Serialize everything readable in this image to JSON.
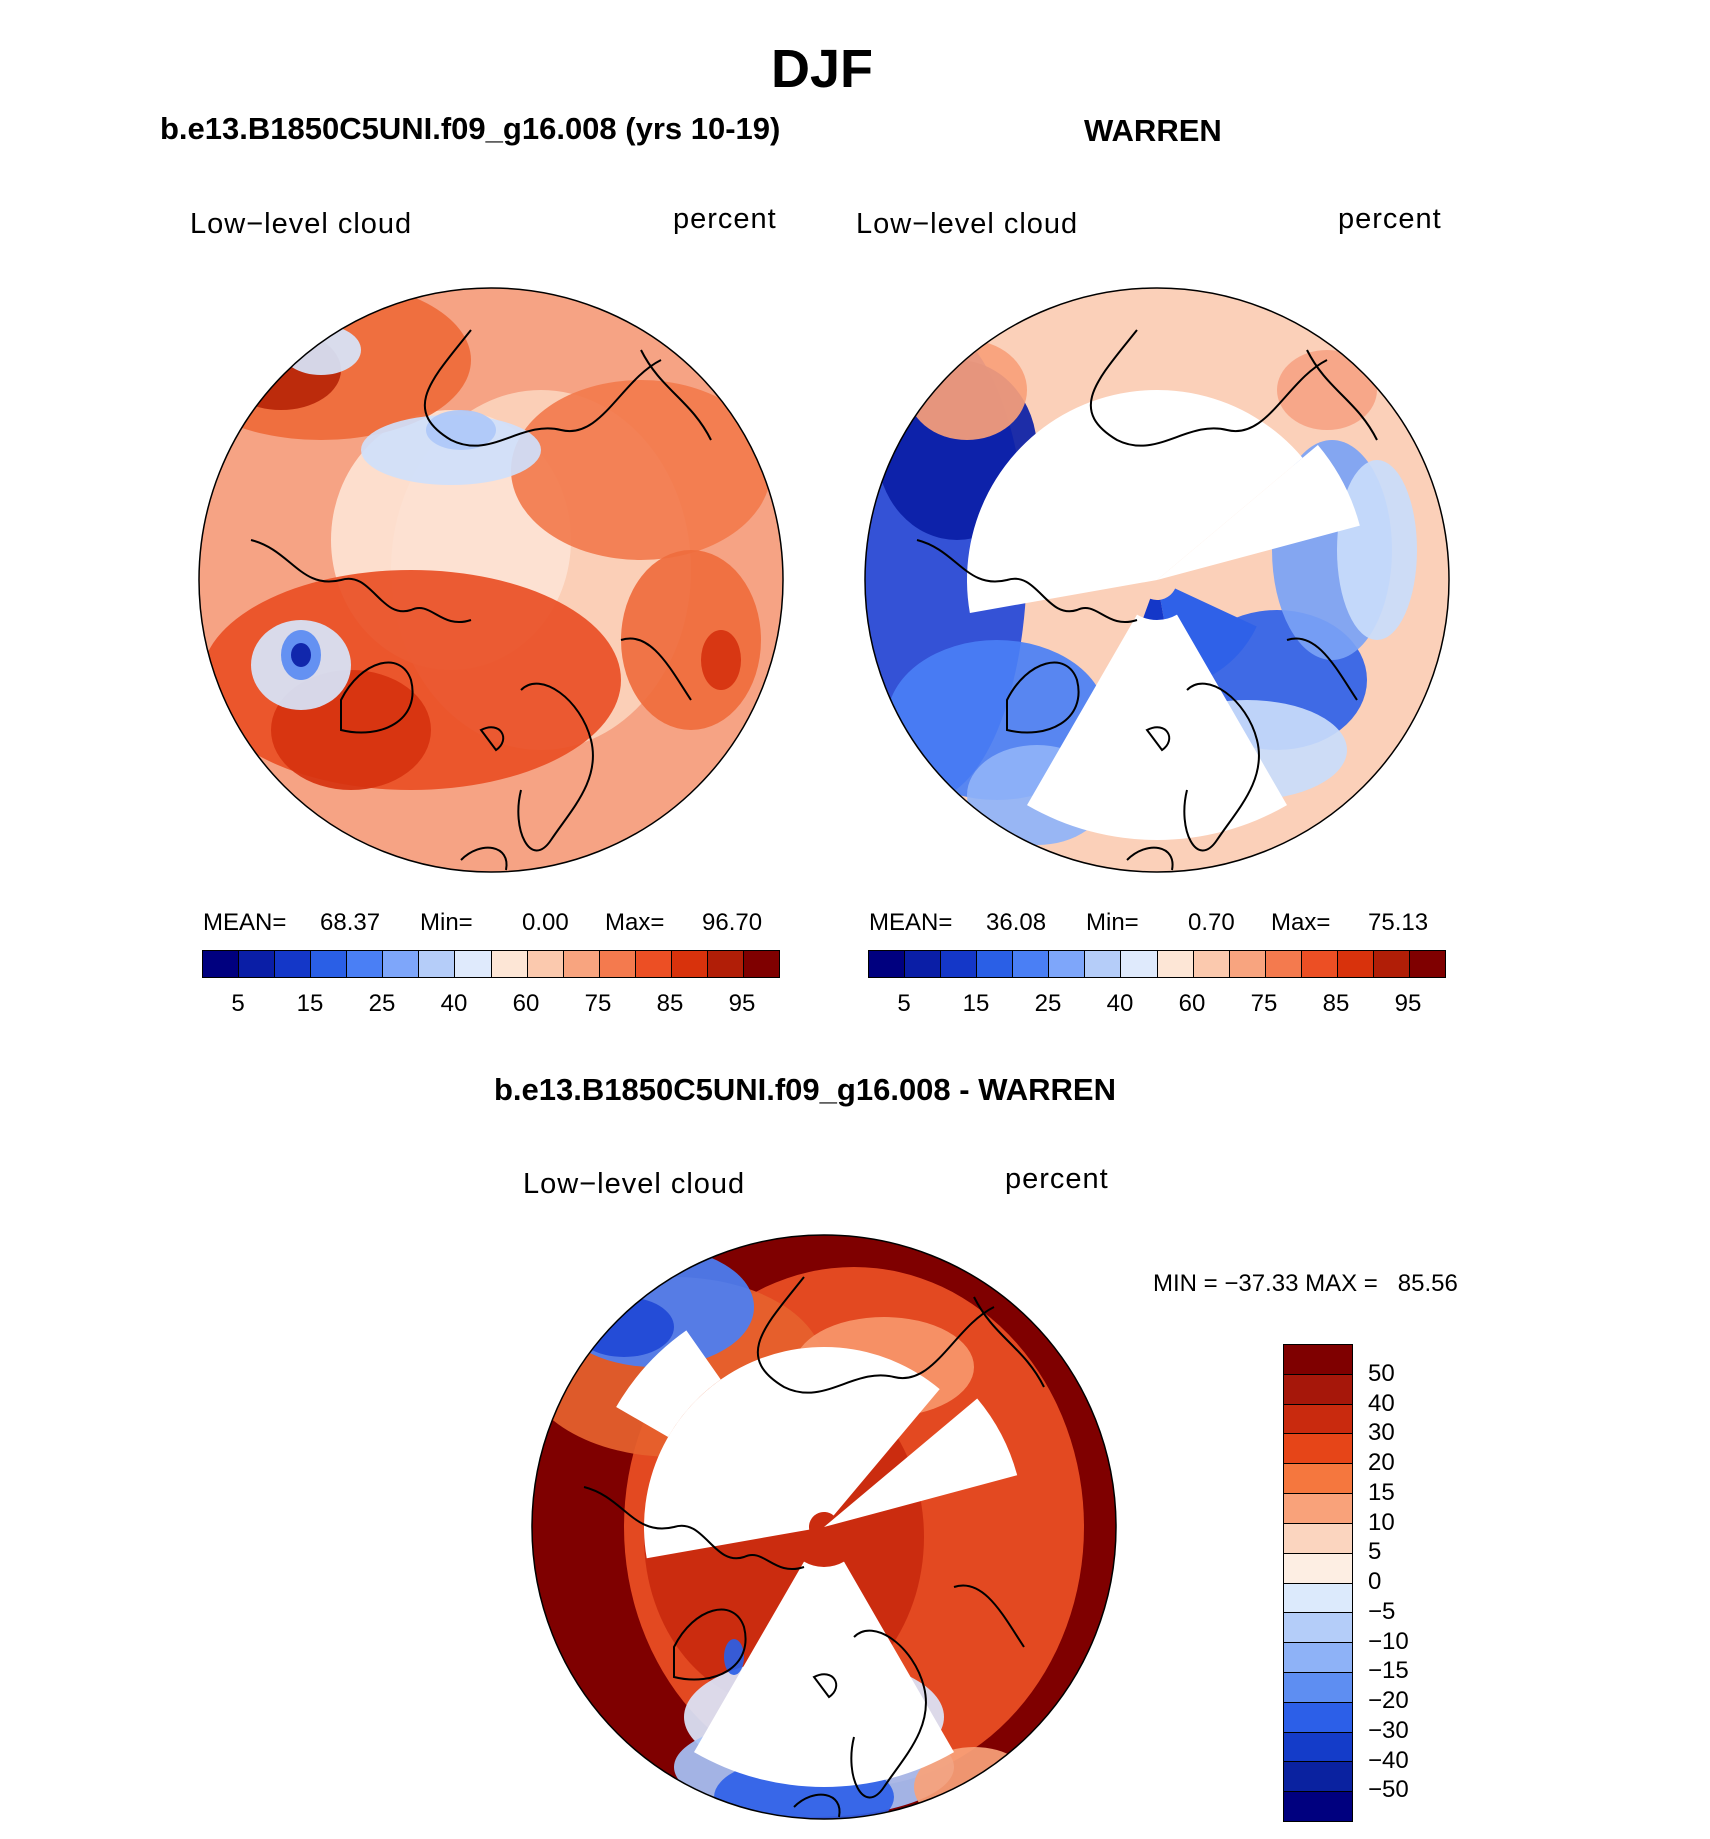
{
  "title": "DJF",
  "panels": [
    {
      "id": "model",
      "title": "b.e13.B1850C5UNI.f09_g16.008 (yrs 10-19)",
      "variable": "Low−level cloud",
      "units": "percent",
      "mean_label": "MEAN=",
      "mean": "68.37",
      "min_label": "Min=",
      "min": "0.00",
      "max_label": "Max=",
      "max": "96.70"
    },
    {
      "id": "obs",
      "title": "WARREN",
      "variable": "Low−level cloud",
      "units": "percent",
      "mean_label": "MEAN=",
      "mean": "36.08",
      "min_label": "Min=",
      "min": "0.70",
      "max_label": "Max=",
      "max": "75.13"
    }
  ],
  "abs_colorbar": {
    "colors": [
      "#00007f",
      "#0a1ea6",
      "#1437c8",
      "#2a5fe6",
      "#4a7ff5",
      "#7ea6fa",
      "#b5cdf9",
      "#dfeafc",
      "#fde6d6",
      "#fbc9ae",
      "#f8a47f",
      "#f47a4e",
      "#ec4f24",
      "#d8320c",
      "#b11e07",
      "#7f0000"
    ],
    "ticks": [
      "5",
      "15",
      "25",
      "40",
      "60",
      "75",
      "85",
      "95"
    ]
  },
  "diff_panel": {
    "title": "b.e13.B1850C5UNI.f09_g16.008 - WARREN",
    "variable": "Low−level cloud",
    "units": "percent",
    "minmax_text": "MIN = −37.33 MAX =   85.56"
  },
  "diff_colorbar": {
    "colors": [
      "#7f0000",
      "#a6170a",
      "#c92a0e",
      "#e64518",
      "#f5773e",
      "#f9a27a",
      "#fbd5bf",
      "#fdeee3",
      "#dceafc",
      "#b4cdf9",
      "#8eb2f7",
      "#5e8ef2",
      "#2c5fe8",
      "#143cc9",
      "#0a22a0",
      "#00007f"
    ],
    "ticks": [
      "50",
      "40",
      "30",
      "20",
      "15",
      "10",
      "5",
      "0",
      "−5",
      "−10",
      "−15",
      "−20",
      "−30",
      "−40",
      "−50"
    ]
  },
  "maps": [
    {
      "name": "model-map",
      "background": "#f6a384",
      "blobs": [
        {
          "c": "#fbd2bc",
          "x": 50,
          "y": -10,
          "rx": 150,
          "ry": 180
        },
        {
          "c": "#fde3d4",
          "x": -40,
          "y": -40,
          "rx": 120,
          "ry": 130
        },
        {
          "c": "#e94f25",
          "x": -80,
          "y": 100,
          "rx": 210,
          "ry": 110
        },
        {
          "c": "#d6320f",
          "x": -140,
          "y": 150,
          "rx": 80,
          "ry": 60
        },
        {
          "c": "#ee6a3a",
          "x": -170,
          "y": -220,
          "rx": 150,
          "ry": 80
        },
        {
          "c": "#b72508",
          "x": -210,
          "y": -210,
          "rx": 60,
          "ry": 40
        },
        {
          "c": "#f27b4d",
          "x": 150,
          "y": -110,
          "rx": 130,
          "ry": 90
        },
        {
          "c": "#ef6d3d",
          "x": 200,
          "y": 60,
          "rx": 70,
          "ry": 90
        },
        {
          "c": "#d6320f",
          "x": 230,
          "y": 80,
          "rx": 20,
          "ry": 30
        },
        {
          "c": "#cfe0fb",
          "x": -40,
          "y": -130,
          "rx": 90,
          "ry": 35
        },
        {
          "c": "#aec8f8",
          "x": -30,
          "y": -150,
          "rx": 35,
          "ry": 20
        },
        {
          "c": "#d7e5fb",
          "x": -190,
          "y": 85,
          "rx": 50,
          "ry": 45
        },
        {
          "c": "#5a8bf2",
          "x": -190,
          "y": 75,
          "rx": 20,
          "ry": 25
        },
        {
          "c": "#0a1ea6",
          "x": -190,
          "y": 75,
          "rx": 10,
          "ry": 12
        },
        {
          "c": "#d7e5fb",
          "x": -170,
          "y": -230,
          "rx": 40,
          "ry": 25
        }
      ]
    },
    {
      "name": "obs-map",
      "background": "#fbd0b9",
      "blobs": [
        {
          "c": "#2346d8",
          "x": -230,
          "y": -20,
          "rx": 100,
          "ry": 240
        },
        {
          "c": "#0a1ea6",
          "x": -200,
          "y": -130,
          "rx": 80,
          "ry": 90
        },
        {
          "c": "#4a7ff5",
          "x": -160,
          "y": 140,
          "rx": 110,
          "ry": 80
        },
        {
          "c": "#8fb3f8",
          "x": -120,
          "y": 215,
          "rx": 70,
          "ry": 50
        },
        {
          "c": "#2f61e8",
          "x": 120,
          "y": 100,
          "rx": 90,
          "ry": 70
        },
        {
          "c": "#7aa2f5",
          "x": 175,
          "y": -30,
          "rx": 60,
          "ry": 110
        },
        {
          "c": "#c9dcfb",
          "x": 90,
          "y": 170,
          "rx": 100,
          "ry": 50
        },
        {
          "c": "#c9dcfb",
          "x": 220,
          "y": -30,
          "rx": 40,
          "ry": 90
        },
        {
          "c": "#f8a07a",
          "x": -190,
          "y": -190,
          "rx": 60,
          "ry": 50
        },
        {
          "c": "#f6a384",
          "x": 170,
          "y": -190,
          "rx": 50,
          "ry": 40
        }
      ],
      "wedges": [
        {
          "a0": -100,
          "a1": 50,
          "r0": 0,
          "r1": 190
        },
        {
          "a0": 150,
          "a1": 210,
          "r0": 40,
          "r1": 260
        },
        {
          "a0": 50,
          "a1": 75,
          "r0": 0,
          "r1": 210
        }
      ],
      "holeRing": [
        {
          "c": "#2f61e8",
          "a0": 115,
          "a1": 170,
          "r0": 20,
          "r1": 110
        },
        {
          "c": "#1437c8",
          "a0": 170,
          "a1": 200,
          "r0": 20,
          "r1": 80
        }
      ]
    },
    {
      "name": "diff-map",
      "background": "#7f0000",
      "blobs": [
        {
          "c": "#ec4f24",
          "x": 30,
          "y": 0,
          "rx": 230,
          "ry": 260
        },
        {
          "c": "#c92a0e",
          "x": -40,
          "y": 10,
          "rx": 140,
          "ry": 170
        },
        {
          "c": "#e6622e",
          "x": -150,
          "y": -160,
          "rx": 150,
          "ry": 90
        },
        {
          "c": "#f7976b",
          "x": 60,
          "y": -160,
          "rx": 90,
          "ry": 50
        },
        {
          "c": "#4a7ff5",
          "x": -170,
          "y": -220,
          "rx": 100,
          "ry": 60
        },
        {
          "c": "#2048d6",
          "x": -200,
          "y": -200,
          "rx": 50,
          "ry": 30
        },
        {
          "c": "#dbe6fb",
          "x": -10,
          "y": 190,
          "rx": 130,
          "ry": 60
        },
        {
          "c": "#a6c2f7",
          "x": -10,
          "y": 240,
          "rx": 140,
          "ry": 50
        },
        {
          "c": "#2f61e8",
          "x": -20,
          "y": 270,
          "rx": 90,
          "ry": 40
        },
        {
          "c": "#f9a27a",
          "x": 150,
          "y": 260,
          "rx": 60,
          "ry": 40
        },
        {
          "c": "#2a5fe6",
          "x": -90,
          "y": 130,
          "rx": 10,
          "ry": 18
        }
      ],
      "wedges": [
        {
          "a0": -100,
          "a1": 40,
          "r0": 15,
          "r1": 180
        },
        {
          "a0": 150,
          "a1": 210,
          "r0": 40,
          "r1": 260
        },
        {
          "a0": 50,
          "a1": 75,
          "r0": 0,
          "r1": 200
        },
        {
          "a0": -60,
          "a1": -35,
          "r0": 180,
          "r1": 240
        }
      ]
    }
  ]
}
